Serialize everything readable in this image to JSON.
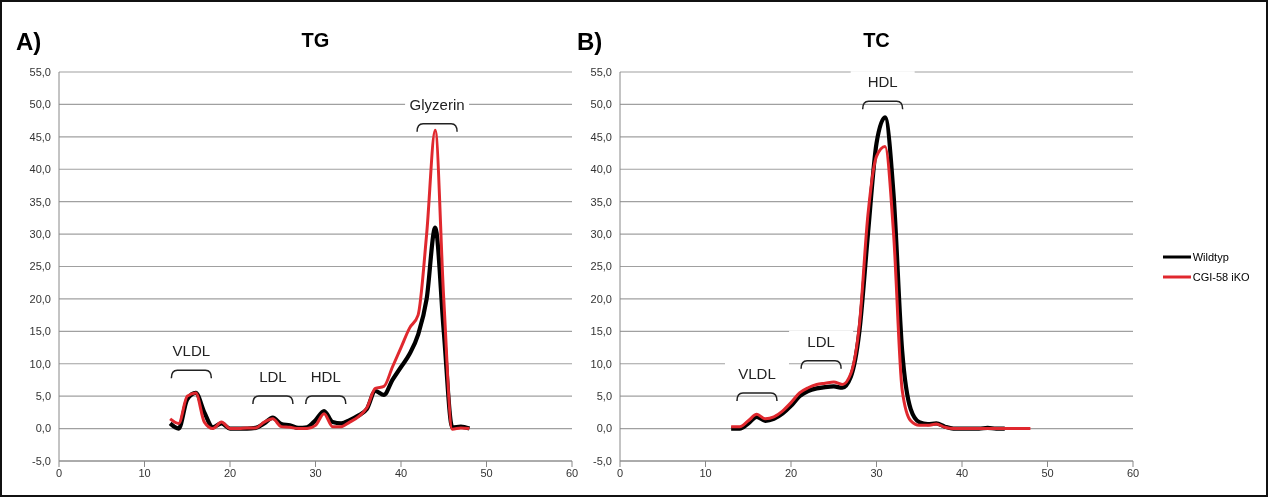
{
  "chart_data": [
    {
      "type": "line",
      "title": "TG",
      "x": [
        13,
        14,
        15,
        16,
        17,
        18,
        19,
        20,
        21,
        22,
        23,
        24,
        25,
        26,
        27,
        28,
        29,
        30,
        31,
        32,
        33,
        34,
        35,
        36,
        37,
        38,
        39,
        40,
        41,
        42,
        43,
        44,
        45,
        46,
        47,
        48
      ],
      "series": [
        {
          "color": "#000000",
          "values": [
            0.8,
            0,
            4.5,
            5.5,
            2.5,
            0.2,
            0.8,
            0,
            0,
            0,
            0.1,
            0.8,
            1.7,
            0.7,
            0.5,
            0.1,
            0.2,
            1.3,
            2.7,
            1.0,
            0.8,
            1.3,
            2.0,
            3.0,
            5.8,
            5.2,
            7.5,
            9.5,
            11.5,
            14.5,
            20,
            31,
            15,
            0.2,
            0.3,
            0
          ]
        },
        {
          "color": "#e0282e",
          "values": [
            1.5,
            0.8,
            5,
            5.5,
            1.0,
            0,
            1.0,
            0,
            0,
            0.1,
            0.1,
            1.0,
            1.5,
            0.3,
            0.2,
            0,
            0,
            0.5,
            2.3,
            0.3,
            0.3,
            1.0,
            1.8,
            3.2,
            6.2,
            6.5,
            9.5,
            12.5,
            15.5,
            17.5,
            30,
            46,
            20,
            -0.1,
            0.1,
            0
          ]
        }
      ],
      "xlim": [
        0,
        60
      ],
      "xticks": [
        0,
        10,
        20,
        30,
        40,
        50,
        60
      ],
      "ylim": [
        -5,
        55
      ],
      "yticks": [
        {
          "value": -5,
          "label": "-5,0"
        },
        {
          "value": 0,
          "label": "0,0"
        },
        {
          "value": 5,
          "label": "5,0"
        },
        {
          "value": 10,
          "label": "10,0"
        },
        {
          "value": 15,
          "label": "15,0"
        },
        {
          "value": 20,
          "label": "20,0"
        },
        {
          "value": 25,
          "label": "25,0"
        },
        {
          "value": 30,
          "label": "30,0"
        },
        {
          "value": 35,
          "label": "35,0"
        },
        {
          "value": 40,
          "label": "40,0"
        },
        {
          "value": 45,
          "label": "45,0"
        },
        {
          "value": 50,
          "label": "50,0"
        },
        {
          "value": 55,
          "label": "55,0"
        }
      ],
      "grid": "y",
      "marker": "none",
      "line_style": "solid",
      "legend": false,
      "annotations": [
        "A)",
        "VLDL",
        "LDL",
        "HDL",
        "Glyzerin"
      ]
    },
    {
      "type": "line",
      "title": "TC",
      "x": [
        13,
        14,
        15,
        16,
        17,
        18,
        19,
        20,
        21,
        22,
        23,
        24,
        25,
        26,
        27,
        28,
        29,
        30,
        31,
        32,
        33,
        34,
        35,
        36,
        37,
        38,
        39,
        40,
        41,
        42,
        43,
        44,
        45,
        46,
        47,
        48
      ],
      "series": [
        {
          "name": "Wildtyp",
          "color": "#000000",
          "values": [
            0,
            0,
            0.8,
            1.8,
            1.2,
            1.5,
            2.3,
            3.5,
            5,
            5.8,
            6.2,
            6.4,
            6.5,
            6.3,
            8,
            15,
            30,
            44,
            48,
            36,
            12,
            3,
            1,
            0.7,
            0.8,
            0.3,
            0,
            0,
            0,
            0,
            0.1,
            0,
            0,
            null,
            null,
            null
          ]
        },
        {
          "name": "CGI-58 iKO",
          "color": "#e0282e",
          "values": [
            0.3,
            0.3,
            1.2,
            2.2,
            1.5,
            1.8,
            2.7,
            4,
            5.5,
            6.3,
            6.8,
            7,
            7.2,
            6.8,
            8.5,
            16,
            33,
            42,
            43.5,
            30,
            6,
            1.2,
            0.5,
            0.5,
            0.7,
            0.2,
            0,
            0,
            0,
            0,
            0,
            0,
            0,
            0,
            0,
            0
          ]
        }
      ],
      "xlim": [
        0,
        60
      ],
      "xticks": [
        0,
        10,
        20,
        30,
        40,
        50,
        60
      ],
      "ylim": [
        -5,
        55
      ],
      "yticks": [
        {
          "value": -5,
          "label": "-5,0"
        },
        {
          "value": 0,
          "label": "0,0"
        },
        {
          "value": 5,
          "label": "5,0"
        },
        {
          "value": 10,
          "label": "10,0"
        },
        {
          "value": 15,
          "label": "15,0"
        },
        {
          "value": 20,
          "label": "20,0"
        },
        {
          "value": 25,
          "label": "25,0"
        },
        {
          "value": 30,
          "label": "30,0"
        },
        {
          "value": 35,
          "label": "35,0"
        },
        {
          "value": 40,
          "label": "40,0"
        },
        {
          "value": 45,
          "label": "45,0"
        },
        {
          "value": 50,
          "label": "50,0"
        },
        {
          "value": 55,
          "label": "55,0"
        }
      ],
      "grid": "y",
      "marker": "none",
      "line_style": "solid",
      "legend": "right",
      "annotations": [
        "B)",
        "VLDL",
        "LDL",
        "HDL"
      ]
    }
  ]
}
